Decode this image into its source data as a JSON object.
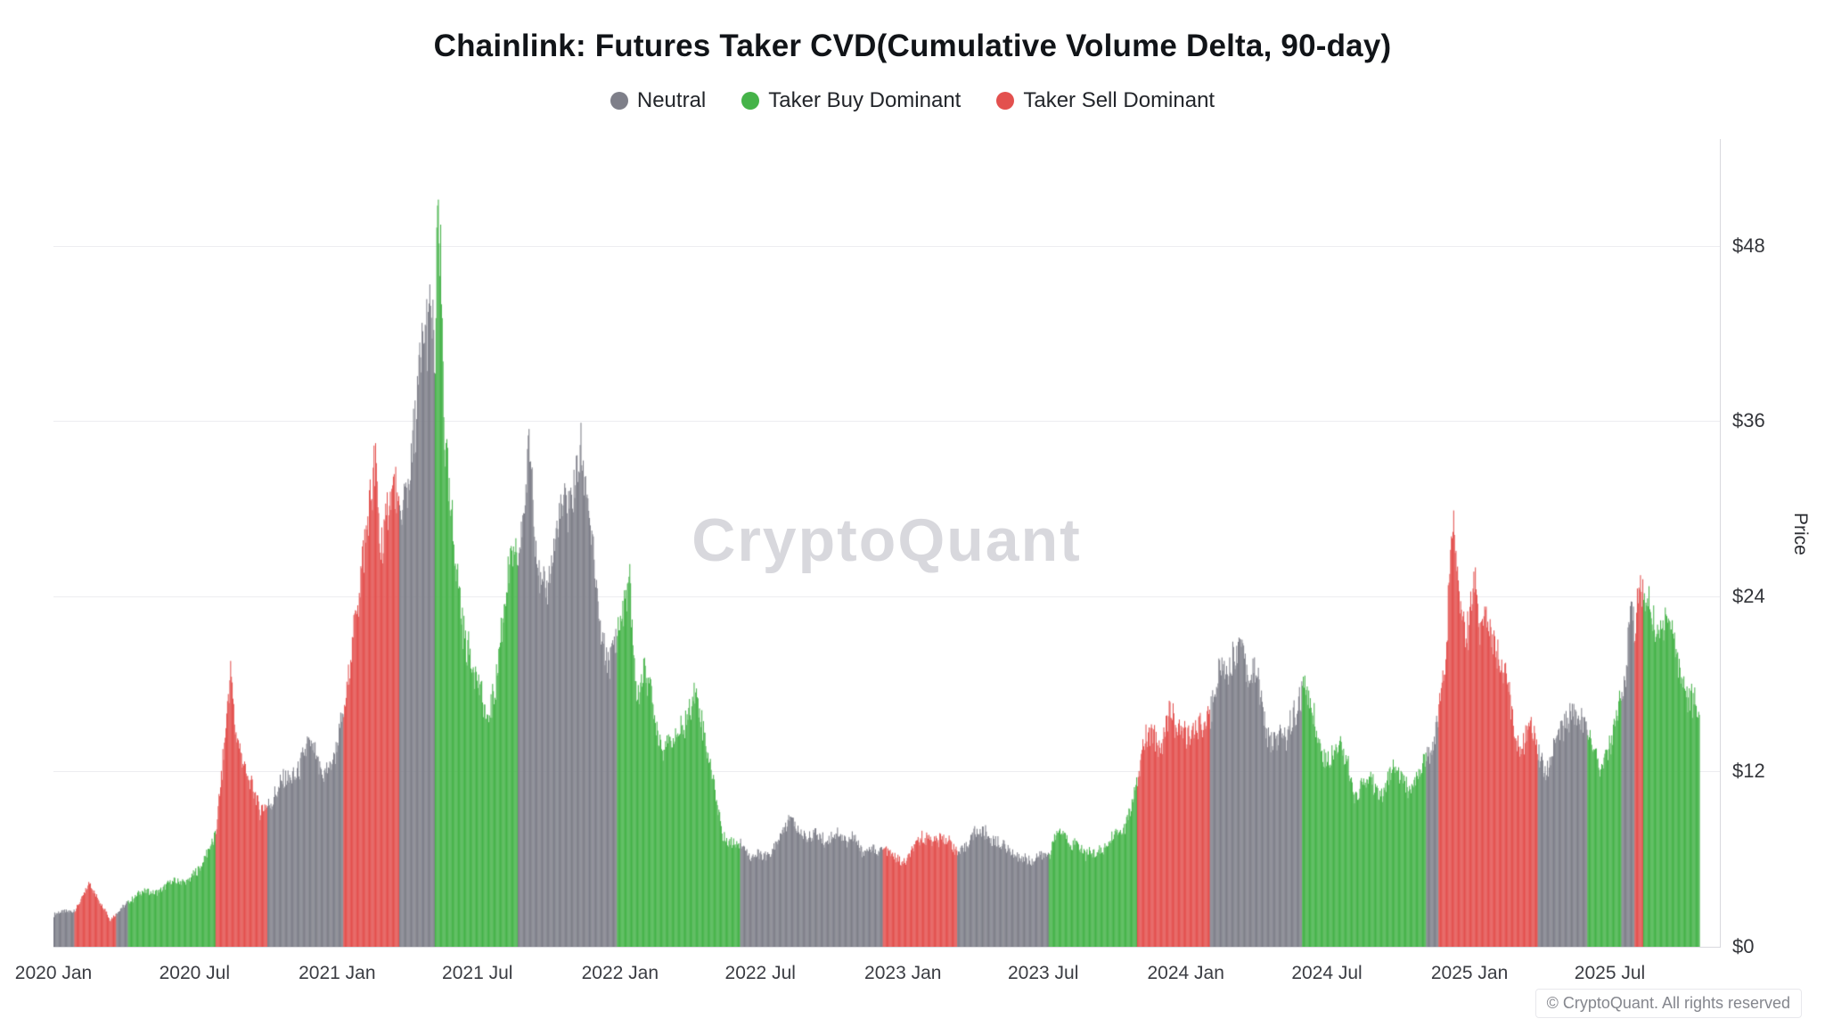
{
  "title": "Chainlink: Futures Taker CVD(Cumulative Volume Delta, 90-day)",
  "legend": {
    "items": [
      {
        "label": "Neutral",
        "color_key": "n"
      },
      {
        "label": "Taker Buy Dominant",
        "color_key": "b"
      },
      {
        "label": "Taker Sell Dominant",
        "color_key": "s"
      }
    ]
  },
  "y_axis_title": "Price",
  "watermark": "CryptoQuant",
  "copyright": "© CryptoQuant. All rights reserved",
  "chart_data": {
    "type": "bar",
    "title": "Chainlink: Futures Taker CVD(Cumulative Volume Delta, 90-day)",
    "xlabel": "",
    "ylabel": "Price",
    "ylim": [
      0,
      55.3
    ],
    "x_domain": [
      "2020-01-01",
      "2025-11-20"
    ],
    "grid": true,
    "legend_position": "top",
    "colors": {
      "n": "#7e7f89",
      "b": "#45b349",
      "s": "#e3504e"
    },
    "regime_names": {
      "n": "Neutral",
      "b": "Taker Buy Dominant",
      "s": "Taker Sell Dominant"
    },
    "yticks": [
      {
        "label": "$0",
        "value": 0
      },
      {
        "label": "$12",
        "value": 12
      },
      {
        "label": "$24",
        "value": 24
      },
      {
        "label": "$36",
        "value": 36
      },
      {
        "label": "$48",
        "value": 48
      }
    ],
    "gridlines": [
      12,
      24,
      36,
      48
    ],
    "xticks": [
      {
        "label": "2020 Jan",
        "date": "2020-01-01"
      },
      {
        "label": "2020 Jul",
        "date": "2020-07-01"
      },
      {
        "label": "2021 Jan",
        "date": "2021-01-01"
      },
      {
        "label": "2021 Jul",
        "date": "2021-07-01"
      },
      {
        "label": "2022 Jan",
        "date": "2022-01-01"
      },
      {
        "label": "2022 Jul",
        "date": "2022-07-01"
      },
      {
        "label": "2023 Jan",
        "date": "2023-01-01"
      },
      {
        "label": "2023 Jul",
        "date": "2023-07-01"
      },
      {
        "label": "2024 Jan",
        "date": "2024-01-01"
      },
      {
        "label": "2024 Jul",
        "date": "2024-07-01"
      },
      {
        "label": "2025 Jan",
        "date": "2025-01-01"
      },
      {
        "label": "2025 Jul",
        "date": "2025-07-01"
      }
    ],
    "anchors": [
      [
        "2020-01-01",
        2.2,
        "n"
      ],
      [
        "2020-01-18",
        2.4,
        "n"
      ],
      [
        "2020-01-28",
        2.6,
        "s"
      ],
      [
        "2020-02-10",
        3.6,
        "s"
      ],
      [
        "2020-02-16",
        4.2,
        "s"
      ],
      [
        "2020-02-26",
        3.4,
        "s"
      ],
      [
        "2020-03-08",
        2.6,
        "s"
      ],
      [
        "2020-03-13",
        1.8,
        "s"
      ],
      [
        "2020-03-22",
        2.2,
        "n"
      ],
      [
        "2020-04-06",
        3.2,
        "b"
      ],
      [
        "2020-04-20",
        3.6,
        "b"
      ],
      [
        "2020-05-10",
        3.8,
        "b"
      ],
      [
        "2020-06-01",
        4.3,
        "b"
      ],
      [
        "2020-06-20",
        4.6,
        "b"
      ],
      [
        "2020-07-08",
        5.2,
        "b"
      ],
      [
        "2020-07-20",
        7.0,
        "b"
      ],
      [
        "2020-07-28",
        8.0,
        "s"
      ],
      [
        "2020-08-08",
        13.5,
        "s"
      ],
      [
        "2020-08-16",
        18.5,
        "s"
      ],
      [
        "2020-08-22",
        15.0,
        "s"
      ],
      [
        "2020-09-01",
        13.0,
        "s"
      ],
      [
        "2020-09-10",
        11.0,
        "s"
      ],
      [
        "2020-09-23",
        9.2,
        "s"
      ],
      [
        "2020-10-03",
        10.0,
        "n"
      ],
      [
        "2020-10-20",
        10.8,
        "n"
      ],
      [
        "2020-11-08",
        12.0,
        "n"
      ],
      [
        "2020-11-24",
        13.6,
        "n"
      ],
      [
        "2020-12-12",
        12.2,
        "n"
      ],
      [
        "2020-12-28",
        12.8,
        "n"
      ],
      [
        "2021-01-09",
        15.5,
        "s"
      ],
      [
        "2021-01-18",
        21.0,
        "s"
      ],
      [
        "2021-01-26",
        23.5,
        "s"
      ],
      [
        "2021-02-02",
        25.5,
        "s"
      ],
      [
        "2021-02-11",
        29.0,
        "s"
      ],
      [
        "2021-02-19",
        34.0,
        "s"
      ],
      [
        "2021-02-25",
        28.5,
        "s"
      ],
      [
        "2021-03-06",
        29.5,
        "s"
      ],
      [
        "2021-03-14",
        31.0,
        "s"
      ],
      [
        "2021-03-22",
        29.0,
        "n"
      ],
      [
        "2021-04-02",
        32.5,
        "n"
      ],
      [
        "2021-04-12",
        36.0,
        "n"
      ],
      [
        "2021-04-22",
        40.0,
        "n"
      ],
      [
        "2021-05-02",
        44.5,
        "n"
      ],
      [
        "2021-05-07",
        41.0,
        "b"
      ],
      [
        "2021-05-10",
        52.5,
        "b"
      ],
      [
        "2021-05-14",
        47.0,
        "b"
      ],
      [
        "2021-05-19",
        34.0,
        "b"
      ],
      [
        "2021-05-26",
        29.0,
        "b"
      ],
      [
        "2021-06-04",
        26.0,
        "b"
      ],
      [
        "2021-06-14",
        22.0,
        "b"
      ],
      [
        "2021-06-22",
        19.5,
        "b"
      ],
      [
        "2021-07-05",
        17.0,
        "b"
      ],
      [
        "2021-07-13",
        15.5,
        "b"
      ],
      [
        "2021-07-24",
        18.5,
        "b"
      ],
      [
        "2021-08-04",
        22.5,
        "b"
      ],
      [
        "2021-08-14",
        26.5,
        "b"
      ],
      [
        "2021-08-22",
        27.5,
        "n"
      ],
      [
        "2021-09-01",
        31.0,
        "n"
      ],
      [
        "2021-09-05",
        34.5,
        "n"
      ],
      [
        "2021-09-12",
        28.5,
        "n"
      ],
      [
        "2021-09-20",
        24.5,
        "n"
      ],
      [
        "2021-09-29",
        26.0,
        "n"
      ],
      [
        "2021-10-10",
        27.5,
        "n"
      ],
      [
        "2021-10-22",
        29.5,
        "n"
      ],
      [
        "2021-11-02",
        32.5,
        "n"
      ],
      [
        "2021-11-09",
        34.5,
        "n"
      ],
      [
        "2021-11-18",
        30.5,
        "n"
      ],
      [
        "2021-11-28",
        26.0,
        "n"
      ],
      [
        "2021-12-08",
        21.5,
        "n"
      ],
      [
        "2021-12-18",
        19.5,
        "n"
      ],
      [
        "2021-12-28",
        20.5,
        "b"
      ],
      [
        "2022-01-06",
        23.5,
        "b"
      ],
      [
        "2022-01-13",
        25.5,
        "b"
      ],
      [
        "2022-01-22",
        17.0,
        "b"
      ],
      [
        "2022-02-02",
        18.5,
        "b"
      ],
      [
        "2022-02-12",
        17.0,
        "b"
      ],
      [
        "2022-02-24",
        14.0,
        "b"
      ],
      [
        "2022-03-08",
        13.5,
        "b"
      ],
      [
        "2022-03-20",
        15.0,
        "b"
      ],
      [
        "2022-03-31",
        16.5,
        "b"
      ],
      [
        "2022-04-06",
        17.5,
        "b"
      ],
      [
        "2022-04-18",
        14.5,
        "b"
      ],
      [
        "2022-04-30",
        12.0,
        "b"
      ],
      [
        "2022-05-09",
        9.0,
        "b"
      ],
      [
        "2022-05-13",
        7.2,
        "b"
      ],
      [
        "2022-05-24",
        7.0,
        "b"
      ],
      [
        "2022-06-05",
        7.5,
        "n"
      ],
      [
        "2022-06-14",
        6.4,
        "n"
      ],
      [
        "2022-06-22",
        6.0,
        "n"
      ],
      [
        "2022-07-04",
        6.2,
        "n"
      ],
      [
        "2022-07-18",
        6.8,
        "n"
      ],
      [
        "2022-07-30",
        7.6,
        "n"
      ],
      [
        "2022-08-10",
        9.0,
        "n"
      ],
      [
        "2022-08-20",
        8.0,
        "n"
      ],
      [
        "2022-09-01",
        7.2,
        "n"
      ],
      [
        "2022-09-12",
        7.8,
        "n"
      ],
      [
        "2022-09-24",
        7.4,
        "n"
      ],
      [
        "2022-10-06",
        7.6,
        "n"
      ],
      [
        "2022-10-18",
        7.2,
        "n"
      ],
      [
        "2022-10-28",
        7.9,
        "n"
      ],
      [
        "2022-11-09",
        6.2,
        "n"
      ],
      [
        "2022-11-22",
        6.6,
        "n"
      ],
      [
        "2022-12-06",
        6.9,
        "s"
      ],
      [
        "2022-12-18",
        6.0,
        "s"
      ],
      [
        "2022-12-30",
        5.7,
        "s"
      ],
      [
        "2023-01-12",
        6.6,
        "s"
      ],
      [
        "2023-01-24",
        7.2,
        "s"
      ],
      [
        "2023-02-06",
        7.6,
        "s"
      ],
      [
        "2023-02-18",
        7.4,
        "s"
      ],
      [
        "2023-03-02",
        7.0,
        "s"
      ],
      [
        "2023-03-12",
        6.5,
        "n"
      ],
      [
        "2023-03-24",
        7.2,
        "n"
      ],
      [
        "2023-04-06",
        7.7,
        "n"
      ],
      [
        "2023-04-18",
        7.9,
        "n"
      ],
      [
        "2023-04-30",
        7.2,
        "n"
      ],
      [
        "2023-05-12",
        6.6,
        "n"
      ],
      [
        "2023-05-24",
        6.5,
        "n"
      ],
      [
        "2023-06-06",
        6.1,
        "n"
      ],
      [
        "2023-06-15",
        5.6,
        "n"
      ],
      [
        "2023-06-26",
        6.2,
        "n"
      ],
      [
        "2023-07-08",
        6.6,
        "b"
      ],
      [
        "2023-07-20",
        7.7,
        "b"
      ],
      [
        "2023-08-01",
        7.4,
        "b"
      ],
      [
        "2023-08-14",
        7.3,
        "b"
      ],
      [
        "2023-08-24",
        6.1,
        "b"
      ],
      [
        "2023-09-06",
        6.5,
        "b"
      ],
      [
        "2023-09-18",
        6.9,
        "b"
      ],
      [
        "2023-09-30",
        7.4,
        "b"
      ],
      [
        "2023-10-12",
        8.0,
        "b"
      ],
      [
        "2023-10-22",
        10.0,
        "b"
      ],
      [
        "2023-10-30",
        11.3,
        "s"
      ],
      [
        "2023-11-10",
        14.0,
        "s"
      ],
      [
        "2023-11-20",
        14.8,
        "s"
      ],
      [
        "2023-11-30",
        13.8,
        "s"
      ],
      [
        "2023-12-10",
        15.8,
        "s"
      ],
      [
        "2023-12-20",
        14.6,
        "s"
      ],
      [
        "2023-12-30",
        15.4,
        "s"
      ],
      [
        "2024-01-10",
        14.2,
        "s"
      ],
      [
        "2024-01-22",
        14.8,
        "s"
      ],
      [
        "2024-02-01",
        16.5,
        "n"
      ],
      [
        "2024-02-12",
        19.0,
        "n"
      ],
      [
        "2024-02-24",
        18.5,
        "n"
      ],
      [
        "2024-03-06",
        20.5,
        "n"
      ],
      [
        "2024-03-12",
        21.8,
        "n"
      ],
      [
        "2024-03-22",
        18.0,
        "n"
      ],
      [
        "2024-04-01",
        18.5,
        "n"
      ],
      [
        "2024-04-14",
        15.0,
        "n"
      ],
      [
        "2024-04-26",
        14.2,
        "n"
      ],
      [
        "2024-05-08",
        13.8,
        "n"
      ],
      [
        "2024-05-18",
        16.2,
        "n"
      ],
      [
        "2024-05-30",
        17.8,
        "b"
      ],
      [
        "2024-06-10",
        16.0,
        "b"
      ],
      [
        "2024-06-20",
        14.2,
        "b"
      ],
      [
        "2024-07-02",
        12.8,
        "b"
      ],
      [
        "2024-07-14",
        13.6,
        "b"
      ],
      [
        "2024-07-26",
        13.2,
        "b"
      ],
      [
        "2024-08-05",
        10.2,
        "b"
      ],
      [
        "2024-08-16",
        11.0,
        "b"
      ],
      [
        "2024-08-28",
        11.2,
        "b"
      ],
      [
        "2024-09-08",
        10.6,
        "b"
      ],
      [
        "2024-09-20",
        11.4,
        "b"
      ],
      [
        "2024-10-02",
        11.8,
        "b"
      ],
      [
        "2024-10-14",
        11.0,
        "b"
      ],
      [
        "2024-10-26",
        11.6,
        "b"
      ],
      [
        "2024-11-06",
        12.6,
        "n"
      ],
      [
        "2024-11-14",
        14.2,
        "n"
      ],
      [
        "2024-11-22",
        16.5,
        "s"
      ],
      [
        "2024-12-01",
        19.5,
        "s"
      ],
      [
        "2024-12-06",
        24.5,
        "s"
      ],
      [
        "2024-12-11",
        29.5,
        "s"
      ],
      [
        "2024-12-16",
        26.0,
        "s"
      ],
      [
        "2024-12-22",
        23.0,
        "s"
      ],
      [
        "2024-12-30",
        21.5,
        "s"
      ],
      [
        "2025-01-07",
        24.5,
        "s"
      ],
      [
        "2025-01-14",
        21.0,
        "s"
      ],
      [
        "2025-01-21",
        23.5,
        "s"
      ],
      [
        "2025-01-30",
        22.5,
        "s"
      ],
      [
        "2025-02-08",
        19.0,
        "s"
      ],
      [
        "2025-02-18",
        17.5,
        "s"
      ],
      [
        "2025-02-28",
        15.0,
        "s"
      ],
      [
        "2025-03-10",
        13.8,
        "s"
      ],
      [
        "2025-03-20",
        14.8,
        "s"
      ],
      [
        "2025-03-30",
        13.6,
        "n"
      ],
      [
        "2025-04-08",
        12.4,
        "n"
      ],
      [
        "2025-04-20",
        13.6,
        "n"
      ],
      [
        "2025-05-02",
        14.8,
        "n"
      ],
      [
        "2025-05-12",
        16.6,
        "n"
      ],
      [
        "2025-05-22",
        15.6,
        "n"
      ],
      [
        "2025-06-02",
        14.4,
        "b"
      ],
      [
        "2025-06-12",
        13.2,
        "b"
      ],
      [
        "2025-06-22",
        12.8,
        "b"
      ],
      [
        "2025-07-02",
        13.8,
        "b"
      ],
      [
        "2025-07-10",
        15.4,
        "b"
      ],
      [
        "2025-07-16",
        17.0,
        "n"
      ],
      [
        "2025-07-22",
        20.0,
        "n"
      ],
      [
        "2025-07-28",
        24.8,
        "n"
      ],
      [
        "2025-08-02",
        22.0,
        "s"
      ],
      [
        "2025-08-08",
        23.8,
        "s"
      ],
      [
        "2025-08-13",
        22.8,
        "b"
      ],
      [
        "2025-08-22",
        23.2,
        "b"
      ],
      [
        "2025-09-01",
        21.8,
        "b"
      ],
      [
        "2025-09-10",
        22.6,
        "b"
      ],
      [
        "2025-09-20",
        20.8,
        "b"
      ],
      [
        "2025-10-01",
        19.0,
        "b"
      ],
      [
        "2025-10-10",
        17.6,
        "b"
      ],
      [
        "2025-10-18",
        16.2,
        "b"
      ],
      [
        "2025-10-24",
        15.0,
        "b"
      ]
    ]
  }
}
